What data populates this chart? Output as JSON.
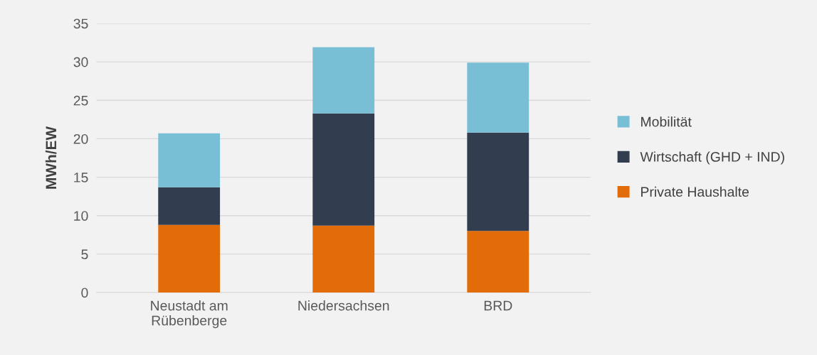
{
  "chart_data": {
    "type": "bar",
    "stacked": true,
    "ylabel": "MWh/EW",
    "categories": [
      "Neustadt am\nRübenberge",
      "Niedersachsen",
      "BRD"
    ],
    "series": [
      {
        "name": "Private Haushalte",
        "color": "#e36c0a",
        "values": [
          8.8,
          8.7,
          8.0
        ]
      },
      {
        "name": "Wirtschaft (GHD + IND)",
        "color": "#323d4f",
        "values": [
          4.9,
          14.6,
          12.8
        ]
      },
      {
        "name": "Mobilität",
        "color": "#78bfd6",
        "values": [
          7.0,
          8.6,
          9.1
        ]
      }
    ],
    "ylim": [
      0,
      35
    ],
    "yticks": [
      0,
      5,
      10,
      15,
      20,
      25,
      30,
      35
    ],
    "grid": "y",
    "legend": "right"
  }
}
